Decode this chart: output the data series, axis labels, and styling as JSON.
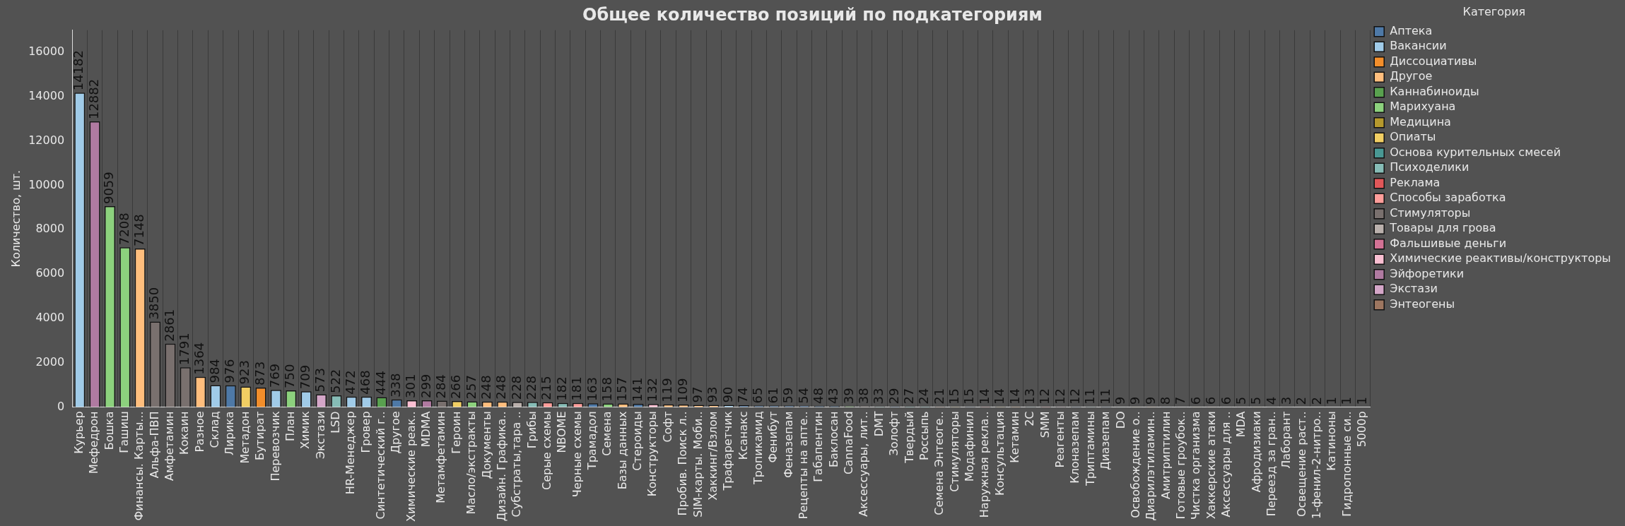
{
  "chart_data": {
    "type": "bar",
    "title": "Общее количество позиций по подкатегориям",
    "ylabel": "Количество, шт.",
    "legend_title": "Категория",
    "legend": "right",
    "grid": "x",
    "data_labels": true,
    "ylim": [
      0,
      17000
    ],
    "yticks": [
      0,
      2000,
      4000,
      6000,
      8000,
      10000,
      12000,
      14000,
      16000
    ],
    "categories": [
      "Курьер",
      "Мефедрон",
      "Бошка",
      "Гашиш",
      "Финансы. Карты...",
      "Альфа-ПВП",
      "Амфетамин",
      "Кокаин",
      "Разное",
      "Склад",
      "Лирика",
      "Метадон",
      "Бутират",
      "Перевозчик",
      "План",
      "Химик",
      "Экстази",
      "LSD",
      "HR-Менеджер",
      "Гровер",
      "Синтетический г..",
      "Другое",
      "Химические реак..",
      "MDMA",
      "Метамфетамин",
      "Героин",
      "Масло/экстракты",
      "Документы",
      "Дизайн. Графика..",
      "Субстраты,тара ..",
      "Грибы",
      "Серые схемы",
      "NBOME",
      "Черные схемы",
      "Трамадол",
      "Семена",
      "Базы данных",
      "Стероиды",
      "Конструкторы",
      "Софт",
      "Пробив. Поиск л..",
      "SIM-карты. Моби..",
      "Хаккинг/Взлом",
      "Трафаретчик",
      "Ксанакс",
      "Тропикамид",
      "Фенибут",
      "Феназепам",
      "Рецепты на апте..",
      "Габапентин",
      "Баклосан",
      "CannaFood",
      "Аксессуары, лит..",
      "DMT",
      "Золофт",
      "Твердый",
      "Россыпь",
      "Семена Энтеоге..",
      "Стимуляторы",
      "Модафинил",
      "Наружная рекла..",
      "Консультация",
      "Кетамин",
      "2C",
      "SMM",
      "Реагенты",
      "Клоназепам",
      "Триптамины",
      "Диазепам",
      "DO",
      "Освобождение о..",
      "Диарилэтиламин..",
      "Амитриптилин",
      "Готовые гроубок..",
      "Чистка организма",
      "Хаккерские атаки",
      "Аксессуары для ..",
      "MDA",
      "Афродизиаки",
      "Переезд за гран..",
      "Лаборант",
      "Освещение раст..",
      "1-фенил-2-нитро..",
      "Катиноны",
      "Гидропонные си..",
      "5000р"
    ],
    "series": [
      {
        "name": "Аптека",
        "color": "#4e79a7",
        "values": [
          null,
          null,
          null,
          null,
          null,
          null,
          null,
          null,
          null,
          null,
          976,
          null,
          null,
          null,
          null,
          null,
          null,
          null,
          null,
          null,
          null,
          338,
          null,
          null,
          null,
          null,
          null,
          null,
          null,
          null,
          null,
          null,
          null,
          null,
          163,
          null,
          null,
          141,
          null,
          null,
          null,
          null,
          null,
          null,
          74,
          65,
          61,
          59,
          54,
          48,
          43,
          null,
          null,
          null,
          29,
          null,
          null,
          null,
          null,
          15,
          null,
          null,
          null,
          null,
          null,
          null,
          12,
          null,
          11,
          null,
          null,
          null,
          8,
          null,
          null,
          null,
          null,
          null,
          null,
          null,
          null,
          null,
          null,
          null,
          null,
          null
        ]
      },
      {
        "name": "Вакансии",
        "color": "#a0cbe8",
        "values": [
          14182,
          null,
          null,
          null,
          null,
          null,
          null,
          null,
          null,
          984,
          null,
          null,
          null,
          769,
          null,
          709,
          null,
          null,
          472,
          468,
          null,
          null,
          null,
          null,
          null,
          null,
          null,
          null,
          null,
          null,
          null,
          null,
          null,
          null,
          null,
          null,
          null,
          null,
          null,
          null,
          null,
          null,
          null,
          90,
          null,
          null,
          null,
          null,
          null,
          null,
          null,
          null,
          null,
          null,
          null,
          null,
          null,
          null,
          null,
          null,
          null,
          null,
          null,
          null,
          null,
          null,
          null,
          null,
          null,
          null,
          null,
          null,
          null,
          null,
          null,
          null,
          null,
          null,
          null,
          null,
          3,
          null,
          null,
          null,
          null,
          null
        ]
      },
      {
        "name": "Диссоциативы",
        "color": "#f28e2b",
        "values": [
          null,
          null,
          null,
          null,
          null,
          null,
          null,
          null,
          null,
          null,
          null,
          null,
          873,
          null,
          null,
          null,
          null,
          null,
          null,
          null,
          null,
          null,
          null,
          null,
          null,
          null,
          null,
          null,
          null,
          null,
          null,
          null,
          null,
          null,
          null,
          null,
          null,
          null,
          null,
          null,
          null,
          null,
          null,
          null,
          null,
          null,
          null,
          null,
          null,
          null,
          null,
          null,
          null,
          null,
          null,
          null,
          null,
          null,
          null,
          null,
          null,
          null,
          14,
          null,
          null,
          null,
          null,
          null,
          null,
          null,
          null,
          9,
          null,
          null,
          null,
          null,
          null,
          null,
          null,
          null,
          null,
          null,
          null,
          null,
          null,
          null
        ]
      },
      {
        "name": "Другое",
        "color": "#ffbe7d",
        "values": [
          null,
          null,
          null,
          null,
          7148,
          null,
          null,
          null,
          1364,
          null,
          null,
          null,
          null,
          null,
          null,
          null,
          null,
          null,
          null,
          null,
          null,
          null,
          null,
          null,
          null,
          null,
          null,
          248,
          248,
          null,
          null,
          null,
          null,
          null,
          null,
          null,
          157,
          null,
          null,
          119,
          109,
          97,
          93,
          null,
          null,
          null,
          null,
          null,
          null,
          null,
          null,
          null,
          null,
          null,
          null,
          null,
          null,
          null,
          null,
          null,
          null,
          null,
          null,
          null,
          null,
          null,
          null,
          null,
          null,
          null,
          null,
          null,
          null,
          null,
          null,
          6,
          null,
          null,
          null,
          4,
          null,
          null,
          null,
          null,
          null,
          null
        ]
      },
      {
        "name": "Каннабиноиды",
        "color": "#59a14f",
        "values": [
          null,
          null,
          null,
          null,
          null,
          null,
          null,
          null,
          null,
          null,
          null,
          null,
          null,
          null,
          null,
          null,
          null,
          null,
          null,
          null,
          444,
          null,
          null,
          null,
          null,
          null,
          null,
          null,
          null,
          null,
          null,
          null,
          null,
          null,
          null,
          null,
          null,
          null,
          null,
          null,
          null,
          null,
          null,
          null,
          null,
          null,
          null,
          null,
          null,
          null,
          null,
          null,
          null,
          null,
          null,
          null,
          null,
          null,
          null,
          null,
          null,
          null,
          null,
          null,
          null,
          null,
          null,
          null,
          null,
          null,
          null,
          null,
          null,
          null,
          null,
          null,
          null,
          null,
          null,
          null,
          null,
          null,
          null,
          null,
          null,
          null
        ]
      },
      {
        "name": "Марихуана",
        "color": "#8cd17d",
        "values": [
          null,
          null,
          9059,
          7208,
          null,
          null,
          null,
          null,
          null,
          null,
          null,
          null,
          null,
          null,
          750,
          null,
          null,
          null,
          null,
          null,
          null,
          null,
          null,
          null,
          null,
          null,
          257,
          null,
          null,
          null,
          null,
          null,
          null,
          null,
          null,
          158,
          null,
          null,
          null,
          null,
          null,
          null,
          null,
          null,
          null,
          null,
          null,
          null,
          null,
          null,
          null,
          39,
          null,
          null,
          null,
          null,
          null,
          null,
          null,
          null,
          null,
          null,
          null,
          null,
          null,
          null,
          null,
          null,
          null,
          null,
          null,
          null,
          null,
          null,
          null,
          null,
          null,
          null,
          null,
          null,
          null,
          null,
          null,
          null,
          null,
          null
        ]
      },
      {
        "name": "Медицина",
        "color": "#b6992d",
        "values": [
          null,
          null,
          null,
          null,
          null,
          null,
          null,
          null,
          null,
          null,
          null,
          null,
          null,
          null,
          null,
          null,
          null,
          null,
          null,
          null,
          null,
          null,
          null,
          null,
          null,
          null,
          null,
          null,
          null,
          null,
          null,
          null,
          null,
          null,
          null,
          null,
          null,
          null,
          null,
          null,
          null,
          null,
          null,
          null,
          null,
          null,
          null,
          null,
          null,
          null,
          null,
          null,
          null,
          null,
          null,
          null,
          null,
          null,
          15,
          null,
          null,
          14,
          null,
          null,
          null,
          null,
          null,
          null,
          null,
          null,
          9,
          null,
          null,
          null,
          6,
          null,
          null,
          null,
          5,
          null,
          null,
          null,
          null,
          null,
          null,
          null
        ]
      },
      {
        "name": "Опиаты",
        "color": "#f1ce63",
        "values": [
          null,
          null,
          null,
          null,
          null,
          null,
          null,
          null,
          null,
          null,
          null,
          923,
          null,
          null,
          null,
          null,
          null,
          null,
          null,
          null,
          null,
          null,
          null,
          null,
          null,
          266,
          null,
          null,
          null,
          null,
          null,
          null,
          null,
          null,
          null,
          null,
          null,
          null,
          null,
          null,
          null,
          null,
          null,
          null,
          null,
          null,
          null,
          null,
          null,
          null,
          null,
          null,
          null,
          null,
          null,
          null,
          null,
          null,
          null,
          null,
          null,
          null,
          null,
          null,
          null,
          null,
          null,
          null,
          null,
          null,
          null,
          null,
          null,
          null,
          null,
          null,
          null,
          null,
          null,
          null,
          null,
          null,
          null,
          null,
          null,
          null
        ]
      },
      {
        "name": "Основа курительных смесей",
        "color": "#499894",
        "values": [
          null,
          null,
          null,
          null,
          null,
          null,
          null,
          null,
          null,
          null,
          null,
          null,
          null,
          null,
          null,
          null,
          null,
          null,
          null,
          null,
          null,
          null,
          null,
          null,
          null,
          null,
          null,
          null,
          null,
          null,
          null,
          null,
          null,
          null,
          null,
          null,
          null,
          null,
          null,
          null,
          null,
          null,
          null,
          null,
          null,
          null,
          null,
          null,
          null,
          null,
          null,
          null,
          null,
          null,
          null,
          27,
          24,
          null,
          null,
          null,
          null,
          null,
          null,
          null,
          null,
          null,
          null,
          null,
          null,
          null,
          null,
          null,
          null,
          null,
          null,
          null,
          null,
          null,
          null,
          null,
          null,
          null,
          null,
          null,
          null,
          null
        ]
      },
      {
        "name": "Психоделики",
        "color": "#86bcb6",
        "values": [
          null,
          null,
          null,
          null,
          null,
          null,
          null,
          null,
          null,
          null,
          null,
          null,
          null,
          null,
          null,
          null,
          null,
          522,
          null,
          null,
          null,
          null,
          null,
          null,
          null,
          null,
          null,
          null,
          null,
          null,
          228,
          null,
          182,
          null,
          null,
          null,
          null,
          null,
          null,
          null,
          null,
          null,
          null,
          null,
          null,
          null,
          null,
          null,
          null,
          null,
          null,
          null,
          null,
          33,
          null,
          null,
          null,
          null,
          null,
          null,
          null,
          null,
          null,
          13,
          null,
          null,
          null,
          11,
          null,
          9,
          null,
          null,
          null,
          null,
          null,
          null,
          null,
          null,
          null,
          null,
          null,
          null,
          null,
          null,
          null,
          null
        ]
      },
      {
        "name": "Реклама",
        "color": "#e15759",
        "values": [
          null,
          null,
          null,
          null,
          null,
          null,
          null,
          null,
          null,
          null,
          null,
          null,
          null,
          null,
          null,
          null,
          null,
          null,
          null,
          null,
          null,
          null,
          null,
          null,
          null,
          null,
          null,
          null,
          null,
          null,
          null,
          null,
          null,
          null,
          null,
          null,
          null,
          null,
          null,
          null,
          null,
          null,
          null,
          null,
          null,
          null,
          null,
          null,
          null,
          null,
          null,
          null,
          null,
          null,
          null,
          null,
          null,
          null,
          null,
          null,
          14,
          null,
          null,
          null,
          12,
          null,
          null,
          null,
          null,
          null,
          null,
          null,
          null,
          null,
          null,
          null,
          null,
          null,
          null,
          null,
          null,
          null,
          null,
          null,
          null,
          null
        ]
      },
      {
        "name": "Способы заработка",
        "color": "#ff9d9a",
        "values": [
          null,
          null,
          null,
          null,
          null,
          null,
          null,
          null,
          null,
          null,
          null,
          null,
          null,
          null,
          null,
          null,
          null,
          null,
          null,
          null,
          null,
          null,
          null,
          null,
          null,
          null,
          null,
          null,
          null,
          null,
          null,
          215,
          null,
          181,
          null,
          null,
          null,
          null,
          null,
          null,
          null,
          null,
          null,
          null,
          null,
          null,
          null,
          null,
          null,
          null,
          null,
          null,
          null,
          null,
          null,
          null,
          null,
          null,
          null,
          null,
          null,
          null,
          null,
          null,
          null,
          null,
          null,
          null,
          null,
          null,
          null,
          null,
          null,
          null,
          null,
          null,
          null,
          null,
          null,
          null,
          null,
          null,
          null,
          null,
          null,
          null
        ]
      },
      {
        "name": "Стимуляторы",
        "color": "#79706e",
        "values": [
          null,
          null,
          null,
          null,
          null,
          3850,
          2861,
          1791,
          null,
          null,
          null,
          null,
          null,
          null,
          null,
          null,
          null,
          null,
          null,
          null,
          null,
          null,
          null,
          null,
          284,
          null,
          null,
          null,
          null,
          null,
          null,
          null,
          null,
          null,
          null,
          null,
          null,
          null,
          null,
          null,
          null,
          null,
          null,
          null,
          null,
          null,
          null,
          null,
          null,
          null,
          null,
          null,
          null,
          null,
          null,
          null,
          null,
          null,
          null,
          null,
          null,
          null,
          null,
          null,
          null,
          null,
          null,
          null,
          null,
          null,
          null,
          null,
          null,
          null,
          null,
          null,
          null,
          null,
          null,
          null,
          null,
          null,
          null,
          1,
          null,
          null
        ]
      },
      {
        "name": "Товары для грова",
        "color": "#bab0ac",
        "values": [
          null,
          null,
          null,
          null,
          null,
          null,
          null,
          null,
          null,
          null,
          null,
          null,
          null,
          null,
          null,
          null,
          null,
          null,
          null,
          null,
          null,
          null,
          null,
          null,
          null,
          null,
          null,
          null,
          null,
          228,
          null,
          null,
          null,
          null,
          null,
          null,
          null,
          null,
          null,
          null,
          null,
          null,
          null,
          null,
          null,
          null,
          null,
          null,
          null,
          null,
          null,
          null,
          38,
          null,
          null,
          null,
          null,
          null,
          null,
          null,
          null,
          null,
          null,
          null,
          null,
          null,
          null,
          null,
          null,
          null,
          null,
          null,
          null,
          7,
          null,
          null,
          6,
          null,
          null,
          null,
          null,
          2,
          null,
          null,
          1,
          null
        ]
      },
      {
        "name": "Фальшивые деньги",
        "color": "#d37295",
        "values": [
          null,
          null,
          null,
          null,
          null,
          null,
          null,
          null,
          null,
          null,
          null,
          null,
          null,
          null,
          null,
          null,
          null,
          null,
          null,
          null,
          null,
          null,
          null,
          null,
          null,
          null,
          null,
          null,
          null,
          null,
          null,
          null,
          null,
          null,
          null,
          null,
          null,
          null,
          null,
          null,
          null,
          null,
          null,
          null,
          null,
          null,
          null,
          null,
          null,
          null,
          null,
          null,
          null,
          null,
          null,
          null,
          null,
          null,
          null,
          null,
          null,
          null,
          null,
          null,
          null,
          null,
          null,
          null,
          null,
          null,
          null,
          null,
          null,
          null,
          null,
          null,
          null,
          null,
          null,
          null,
          null,
          null,
          null,
          null,
          null,
          1
        ]
      },
      {
        "name": "Химические реактивы/конструкторы",
        "color": "#fabfd2",
        "values": [
          null,
          null,
          null,
          null,
          null,
          null,
          null,
          null,
          null,
          null,
          null,
          null,
          null,
          null,
          null,
          null,
          null,
          null,
          null,
          null,
          null,
          null,
          301,
          null,
          null,
          null,
          null,
          null,
          null,
          null,
          null,
          null,
          null,
          null,
          null,
          null,
          null,
          null,
          132,
          null,
          null,
          null,
          null,
          null,
          null,
          null,
          null,
          null,
          null,
          null,
          null,
          null,
          null,
          null,
          null,
          null,
          null,
          null,
          null,
          null,
          null,
          null,
          null,
          null,
          null,
          12,
          null,
          null,
          null,
          null,
          null,
          null,
          null,
          null,
          null,
          null,
          null,
          null,
          null,
          null,
          null,
          null,
          2,
          null,
          null,
          null
        ]
      },
      {
        "name": "Эйфоретики",
        "color": "#b07aa1",
        "values": [
          null,
          12882,
          null,
          null,
          null,
          null,
          null,
          null,
          null,
          null,
          null,
          null,
          null,
          null,
          null,
          null,
          null,
          null,
          null,
          null,
          null,
          null,
          null,
          299,
          null,
          null,
          null,
          null,
          null,
          null,
          null,
          null,
          null,
          null,
          null,
          null,
          null,
          null,
          null,
          null,
          null,
          null,
          null,
          null,
          null,
          null,
          null,
          null,
          null,
          null,
          null,
          null,
          null,
          null,
          null,
          null,
          null,
          null,
          null,
          null,
          null,
          null,
          null,
          null,
          null,
          null,
          null,
          null,
          null,
          null,
          null,
          null,
          null,
          null,
          null,
          null,
          null,
          5,
          null,
          null,
          null,
          null,
          null,
          null,
          null,
          null
        ]
      },
      {
        "name": "Экстази",
        "color": "#d4a6c8",
        "values": [
          null,
          null,
          null,
          null,
          null,
          null,
          null,
          null,
          null,
          null,
          null,
          null,
          null,
          null,
          null,
          null,
          573,
          null,
          null,
          null,
          null,
          null,
          null,
          null,
          null,
          null,
          null,
          null,
          null,
          null,
          null,
          null,
          null,
          null,
          null,
          null,
          null,
          null,
          null,
          null,
          null,
          null,
          null,
          null,
          null,
          null,
          null,
          null,
          null,
          null,
          null,
          null,
          null,
          null,
          null,
          null,
          null,
          null,
          null,
          null,
          null,
          null,
          null,
          null,
          null,
          null,
          null,
          null,
          null,
          null,
          null,
          null,
          null,
          null,
          null,
          null,
          null,
          null,
          null,
          null,
          null,
          null,
          null,
          null,
          null,
          null
        ]
      },
      {
        "name": "Энтеогены",
        "color": "#9d7660",
        "values": [
          null,
          null,
          null,
          null,
          null,
          null,
          null,
          null,
          null,
          null,
          null,
          null,
          null,
          null,
          null,
          null,
          null,
          null,
          null,
          null,
          null,
          null,
          null,
          null,
          null,
          null,
          null,
          null,
          null,
          null,
          null,
          null,
          null,
          null,
          null,
          null,
          null,
          null,
          null,
          null,
          null,
          null,
          null,
          null,
          null,
          null,
          null,
          null,
          null,
          null,
          null,
          null,
          null,
          null,
          null,
          null,
          null,
          21,
          null,
          null,
          null,
          null,
          null,
          null,
          null,
          null,
          null,
          null,
          null,
          null,
          null,
          null,
          null,
          null,
          null,
          null,
          null,
          null,
          null,
          null,
          null,
          null,
          null,
          null,
          null,
          null
        ]
      }
    ]
  }
}
